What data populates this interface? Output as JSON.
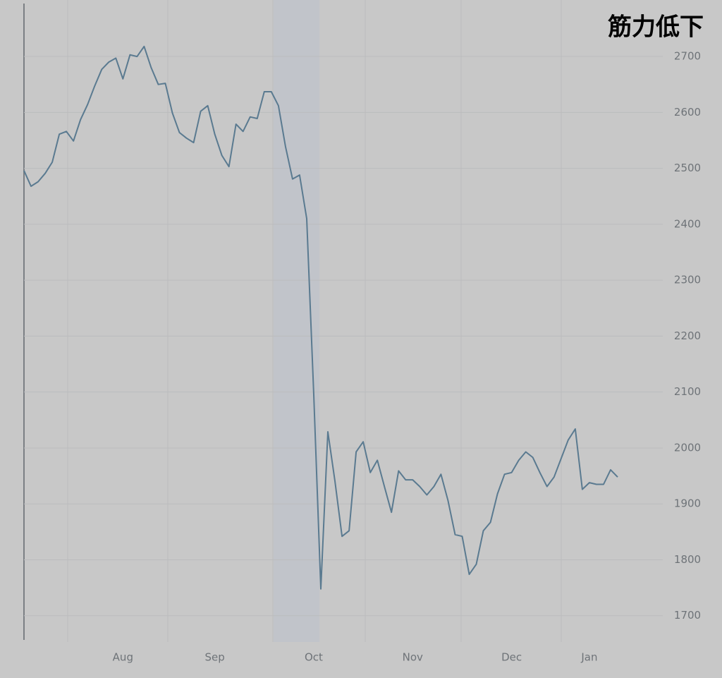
{
  "chart_data": {
    "type": "line",
    "title": "筋力低下",
    "values": [
      2496,
      2468,
      2476,
      2491,
      2511,
      2561,
      2566,
      2549,
      2587,
      2614,
      2647,
      2677,
      2690,
      2697,
      2660,
      2703,
      2700,
      2718,
      2680,
      2650,
      2652,
      2599,
      2564,
      2554,
      2546,
      2602,
      2612,
      2561,
      2523,
      2503,
      2579,
      2566,
      2592,
      2589,
      2637,
      2637,
      2612,
      2539,
      2481,
      2488,
      2410,
      2095,
      1748,
      2029,
      1941,
      1842,
      1852,
      1993,
      2011,
      1956,
      1978,
      1931,
      1885,
      1959,
      1943,
      1943,
      1931,
      1916,
      1931,
      1953,
      1906,
      1845,
      1842,
      1774,
      1792,
      1852,
      1867,
      1918,
      1953,
      1956,
      1978,
      1993,
      1983,
      1956,
      1931,
      1948,
      1981,
      2014,
      2034,
      1926,
      1938,
      1935,
      1935,
      1961,
      1948
    ],
    "color": "#5a7a90",
    "xlim": [
      0,
      84
    ],
    "xticks": [
      {
        "value": 14,
        "label": "Aug"
      },
      {
        "value": 27,
        "label": "Sep"
      },
      {
        "value": 41,
        "label": "Oct"
      },
      {
        "value": 55,
        "label": "Nov"
      },
      {
        "value": 69,
        "label": "Dec"
      },
      {
        "value": 80,
        "label": "Jan"
      }
    ],
    "ylim": [
      1653,
      2801
    ],
    "yticks": [
      1700,
      1800,
      1900,
      2000,
      2100,
      2200,
      2300,
      2400,
      2500,
      2600,
      2700
    ],
    "grid": true
  }
}
